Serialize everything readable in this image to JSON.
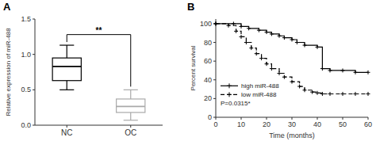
{
  "chart_data": [
    {
      "type": "box",
      "title": "A",
      "categories": [
        "NC",
        "OC"
      ],
      "boxes": [
        {
          "whisker_low": 0.5,
          "q1": 0.63,
          "median": 0.83,
          "q3": 0.95,
          "whisker_high": 1.13,
          "color": "black"
        },
        {
          "whisker_low": 0.07,
          "q1": 0.18,
          "median": 0.265,
          "q3": 0.37,
          "whisker_high": 0.5,
          "color": "#aaaaaa"
        }
      ],
      "ylabel": "Relative expression of miR-488",
      "ylim": [
        0.0,
        1.5
      ],
      "yticks": [
        {
          "value": 0.0,
          "label": "0.0"
        },
        0.5,
        {
          "value": 1.0,
          "label": "1.0"
        },
        1.5
      ],
      "annotations": [
        {
          "text": "**",
          "y": 1.28
        }
      ]
    },
    {
      "type": "step",
      "title": "B",
      "xlabel": "Time (months)",
      "ylabel": "Percent survival",
      "xlim": [
        0,
        60
      ],
      "ylim": [
        0,
        105
      ],
      "xticks": [
        0,
        10,
        20,
        30,
        40,
        50,
        60
      ],
      "yticks": [
        0,
        20,
        40,
        60,
        80,
        100
      ],
      "legend": "left",
      "series": [
        {
          "name": "high miR-488",
          "color": "black",
          "line_style": "solid",
          "marker": "plus",
          "x": [
            0,
            7,
            10,
            13,
            17,
            20,
            22,
            25,
            27,
            30,
            32,
            35,
            40,
            42,
            45,
            50,
            55,
            60
          ],
          "values": [
            100,
            100,
            97,
            95,
            93,
            91,
            89,
            87,
            85,
            83,
            80,
            77,
            75,
            52,
            50,
            50,
            48,
            48
          ]
        },
        {
          "name": "low miR-488",
          "color": "black",
          "line_style": "dashed",
          "marker": "plus",
          "x": [
            0,
            5,
            8,
            10,
            12,
            14,
            16,
            18,
            20,
            22,
            25,
            27,
            30,
            33,
            35,
            38,
            40,
            42,
            45,
            50,
            55,
            60
          ],
          "values": [
            100,
            98,
            92,
            86,
            80,
            74,
            68,
            63,
            57,
            52,
            47,
            43,
            38,
            33,
            29,
            27,
            26,
            25,
            25,
            25,
            25,
            25
          ]
        }
      ],
      "annotations": [
        {
          "text": "P=0.0315*"
        }
      ]
    }
  ]
}
